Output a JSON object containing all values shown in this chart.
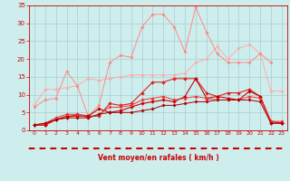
{
  "x": [
    0,
    1,
    2,
    3,
    4,
    5,
    6,
    7,
    8,
    9,
    10,
    11,
    12,
    13,
    14,
    15,
    16,
    17,
    18,
    19,
    20,
    21,
    22,
    23
  ],
  "series": [
    {
      "color": "#ffaaaa",
      "linewidth": 0.7,
      "markersize": 1.8,
      "values": [
        7.0,
        11.5,
        11.5,
        12.0,
        12.5,
        14.5,
        14.0,
        14.5,
        15.0,
        15.5,
        15.5,
        15.5,
        15.5,
        15.5,
        16.0,
        19.0,
        20.0,
        23.5,
        20.0,
        23.0,
        24.0,
        21.5,
        11.0,
        11.0
      ]
    },
    {
      "color": "#ff8888",
      "linewidth": 0.7,
      "markersize": 1.8,
      "values": [
        6.5,
        8.5,
        9.0,
        16.5,
        12.5,
        4.0,
        7.0,
        19.0,
        21.0,
        20.5,
        29.0,
        32.5,
        32.5,
        29.0,
        22.0,
        34.5,
        27.5,
        21.5,
        19.0,
        19.0,
        19.0,
        21.5,
        19.0,
        null
      ]
    },
    {
      "color": "#dd2222",
      "linewidth": 0.8,
      "markersize": 2.0,
      "values": [
        1.5,
        1.5,
        3.0,
        3.5,
        4.5,
        4.0,
        4.0,
        7.5,
        7.0,
        7.5,
        10.5,
        13.5,
        13.5,
        14.5,
        14.5,
        14.5,
        10.5,
        9.5,
        10.5,
        10.5,
        11.5,
        9.5,
        2.5,
        2.0
      ]
    },
    {
      "color": "#cc0000",
      "linewidth": 0.8,
      "markersize": 2.0,
      "values": [
        1.5,
        1.5,
        3.0,
        4.0,
        4.0,
        4.0,
        6.0,
        5.0,
        5.5,
        6.5,
        7.5,
        8.0,
        8.5,
        8.0,
        9.5,
        14.5,
        9.0,
        9.5,
        9.0,
        8.5,
        11.0,
        9.5,
        2.0,
        2.0
      ]
    },
    {
      "color": "#ee3333",
      "linewidth": 0.7,
      "markersize": 1.8,
      "values": [
        1.5,
        2.0,
        3.5,
        4.5,
        4.5,
        3.5,
        4.5,
        6.5,
        6.5,
        7.0,
        8.5,
        9.0,
        9.5,
        8.5,
        9.0,
        9.5,
        9.0,
        8.5,
        8.5,
        8.5,
        9.5,
        9.0,
        2.5,
        2.5
      ]
    },
    {
      "color": "#aa0000",
      "linewidth": 0.7,
      "markersize": 1.8,
      "values": [
        1.5,
        2.0,
        3.0,
        3.5,
        3.5,
        3.5,
        4.5,
        5.0,
        5.0,
        5.0,
        5.5,
        6.0,
        7.0,
        7.0,
        7.5,
        8.0,
        8.0,
        8.5,
        8.5,
        8.5,
        8.5,
        8.0,
        2.0,
        2.0
      ]
    }
  ],
  "xlabel": "Vent moyen/en rafales ( km/h )",
  "xlim_min": -0.5,
  "xlim_max": 23.5,
  "ylim": [
    0,
    35
  ],
  "yticks": [
    0,
    5,
    10,
    15,
    20,
    25,
    30,
    35
  ],
  "xticks": [
    0,
    1,
    2,
    3,
    4,
    5,
    6,
    7,
    8,
    9,
    10,
    11,
    12,
    13,
    14,
    15,
    16,
    17,
    18,
    19,
    20,
    21,
    22,
    23
  ],
  "bg_color": "#ceeeed",
  "grid_color": "#aacccc",
  "tick_color": "#cc0000",
  "label_color": "#cc0000",
  "arrow_color": "#cc0000",
  "xlabel_fontsize": 5.5,
  "tick_fontsize": 4.5,
  "ytick_fontsize": 5.0
}
